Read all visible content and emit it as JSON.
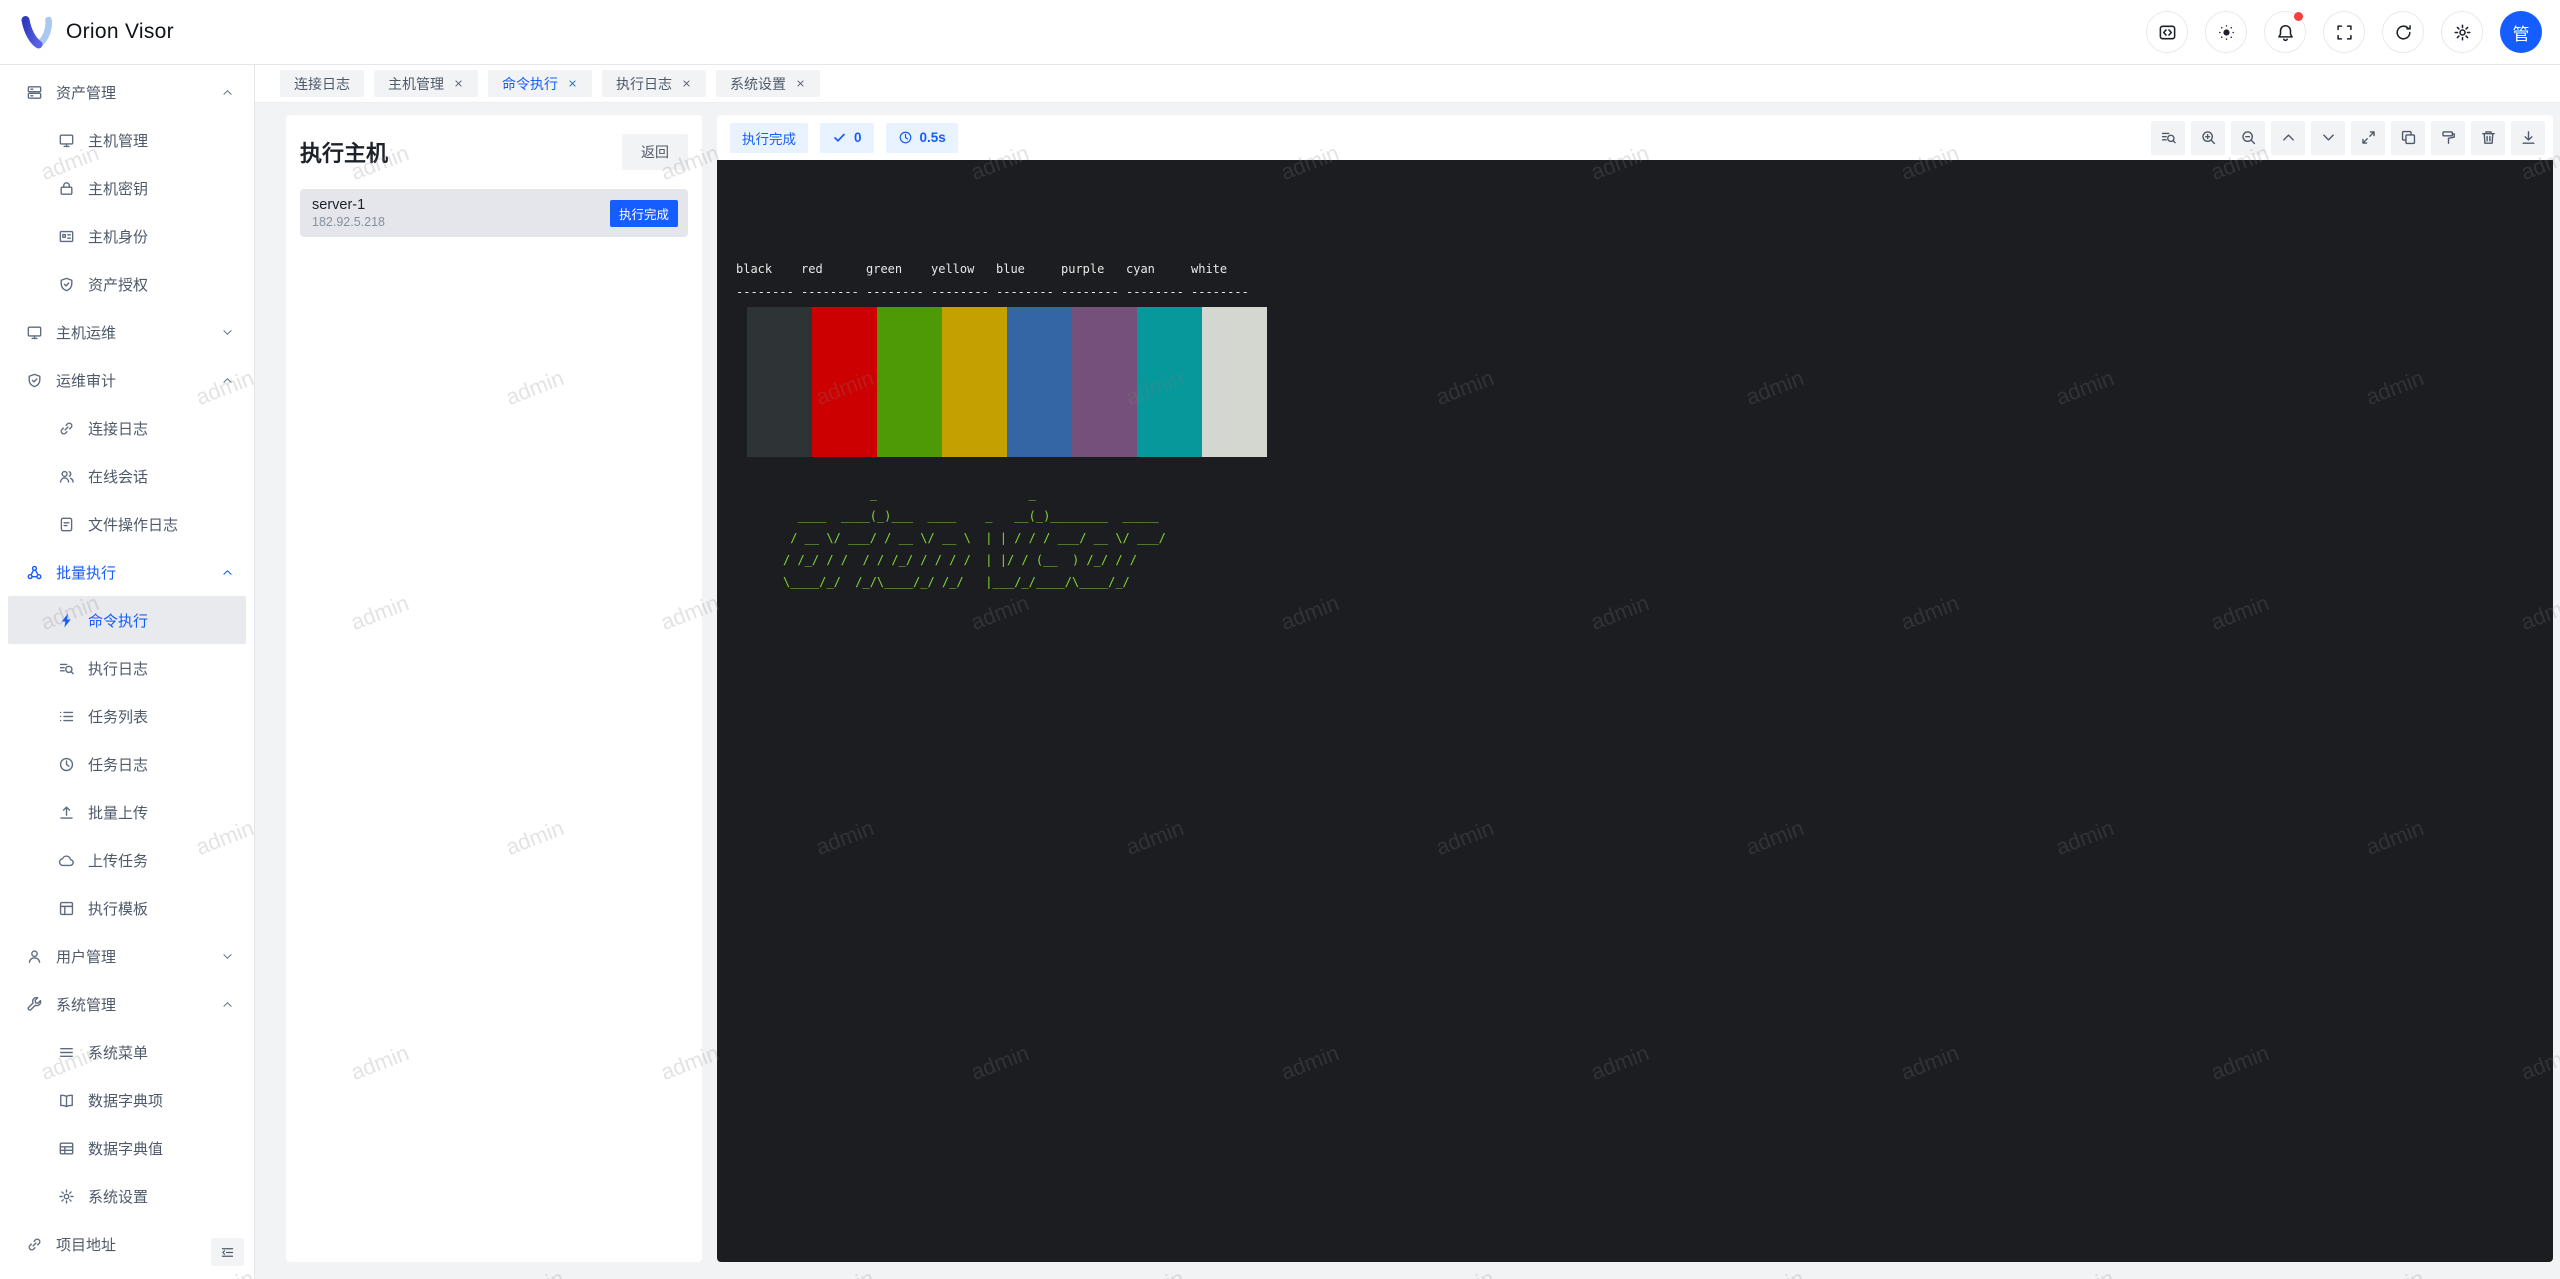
{
  "app": {
    "title": "Orion Visor",
    "brand_color": "#165dff"
  },
  "header": {
    "actions": [
      {
        "key": "code",
        "icon": "code-icon"
      },
      {
        "key": "theme",
        "icon": "sun-icon"
      },
      {
        "key": "notifications",
        "icon": "bell-icon",
        "badge": true
      },
      {
        "key": "fullscreen",
        "icon": "fullscreen-icon"
      },
      {
        "key": "refresh",
        "icon": "refresh-icon"
      },
      {
        "key": "settings",
        "icon": "gear-icon"
      }
    ],
    "avatar_text": "管"
  },
  "sidebar": {
    "items": [
      {
        "key": "asset-management",
        "label": "资产管理",
        "icon": "storage-icon",
        "level": 1,
        "chevron": "up"
      },
      {
        "key": "host-management",
        "label": "主机管理",
        "icon": "desktop-icon",
        "level": 2
      },
      {
        "key": "host-keys",
        "label": "主机密钥",
        "icon": "lock-icon",
        "level": 2
      },
      {
        "key": "host-identity",
        "label": "主机身份",
        "icon": "idcard-icon",
        "level": 2
      },
      {
        "key": "asset-authorization",
        "label": "资产授权",
        "icon": "shield-check-icon",
        "level": 2
      },
      {
        "key": "host-ops",
        "label": "主机运维",
        "icon": "desktop-icon",
        "level": 1,
        "chevron": "down"
      },
      {
        "key": "ops-audit",
        "label": "运维审计",
        "icon": "shield-check-icon",
        "level": 1,
        "chevron": "up"
      },
      {
        "key": "connect-log",
        "label": "连接日志",
        "icon": "link-icon",
        "level": 2
      },
      {
        "key": "online-session",
        "label": "在线会话",
        "icon": "users-icon",
        "level": 2
      },
      {
        "key": "file-op-log",
        "label": "文件操作日志",
        "icon": "file-text-icon",
        "level": 2
      },
      {
        "key": "batch-execute",
        "label": "批量执行",
        "icon": "cluster-icon",
        "level": 1,
        "chevron": "up",
        "blue": true
      },
      {
        "key": "command-execute",
        "label": "命令执行",
        "icon": "thunder-icon",
        "level": 2,
        "active": true
      },
      {
        "key": "execute-log",
        "label": "执行日志",
        "icon": "log-search-icon",
        "level": 2
      },
      {
        "key": "task-list",
        "label": "任务列表",
        "icon": "list-icon",
        "level": 2
      },
      {
        "key": "task-log",
        "label": "任务日志",
        "icon": "clock-icon",
        "level": 2
      },
      {
        "key": "batch-upload",
        "label": "批量上传",
        "icon": "upload-icon",
        "level": 2
      },
      {
        "key": "upload-task",
        "label": "上传任务",
        "icon": "cloud-icon",
        "level": 2
      },
      {
        "key": "execute-template",
        "label": "执行模板",
        "icon": "template-icon",
        "level": 2
      },
      {
        "key": "user-management",
        "label": "用户管理",
        "icon": "user-icon",
        "level": 1,
        "chevron": "down"
      },
      {
        "key": "system-management",
        "label": "系统管理",
        "icon": "wrench-icon",
        "level": 1,
        "chevron": "up"
      },
      {
        "key": "system-menu",
        "label": "系统菜单",
        "icon": "menu-icon",
        "level": 2
      },
      {
        "key": "dict-keys",
        "label": "数据字典项",
        "icon": "book-icon",
        "level": 2
      },
      {
        "key": "dict-values",
        "label": "数据字典值",
        "icon": "table-icon",
        "level": 2
      },
      {
        "key": "system-settings",
        "label": "系统设置",
        "icon": "gear-icon",
        "level": 2
      },
      {
        "key": "project-link",
        "label": "项目地址",
        "icon": "link-icon",
        "level": 1
      }
    ]
  },
  "tabs": [
    {
      "key": "connect-log",
      "label": "连接日志",
      "closable": false,
      "active": false
    },
    {
      "key": "host-management",
      "label": "主机管理",
      "closable": true,
      "active": false
    },
    {
      "key": "command-execute",
      "label": "命令执行",
      "closable": true,
      "active": true
    },
    {
      "key": "execute-log",
      "label": "执行日志",
      "closable": true,
      "active": false
    },
    {
      "key": "system-settings",
      "label": "系统设置",
      "closable": true,
      "active": false
    }
  ],
  "host_panel": {
    "title": "执行主机",
    "back_label": "返回",
    "hosts": [
      {
        "name": "server-1",
        "ip": "182.92.5.218",
        "status_label": "执行完成"
      }
    ]
  },
  "terminal": {
    "status_label": "执行完成",
    "success_count": "0",
    "duration": "0.5s",
    "background": "#1c1d21",
    "toolbar_actions": [
      {
        "key": "search",
        "icon": "log-search-icon"
      },
      {
        "key": "zoom-in",
        "icon": "zoom-in-icon"
      },
      {
        "key": "zoom-out",
        "icon": "zoom-out-icon"
      },
      {
        "key": "scroll-up",
        "icon": "chevron-up-icon"
      },
      {
        "key": "scroll-down",
        "icon": "chevron-down-icon"
      },
      {
        "key": "expand",
        "icon": "expand-icon"
      },
      {
        "key": "copy",
        "icon": "copy-icon"
      },
      {
        "key": "clear",
        "icon": "roller-icon"
      },
      {
        "key": "delete",
        "icon": "trash-icon"
      },
      {
        "key": "download",
        "icon": "download-icon"
      }
    ],
    "palette": {
      "names": [
        "black",
        "red",
        "green",
        "yellow",
        "blue",
        "purple",
        "cyan",
        "white"
      ],
      "dash": "--------",
      "colors": [
        "#2e3436",
        "#cc0000",
        "#4e9a06",
        "#c4a000",
        "#3465a4",
        "#75507b",
        "#06989a",
        "#d3d7cf"
      ]
    },
    "ascii_art": [
      "            _                     _",
      "  ____  ____(_)___  ____    _   __(_)________  _____",
      " / __ \\/ ___/ / __ \\/ __ \\  | | / / / ___/ __ \\/ ___/",
      "/ /_/ / /  / / /_/ / / / /  | |/ / (__  ) /_/ / /",
      "\\____/_/  /_/\\____/_/ /_/   |___/_/____/\\____/_/"
    ],
    "art_color": "#82d736",
    "text_color": "#e8e8e8"
  },
  "watermark": {
    "text": "admin"
  }
}
